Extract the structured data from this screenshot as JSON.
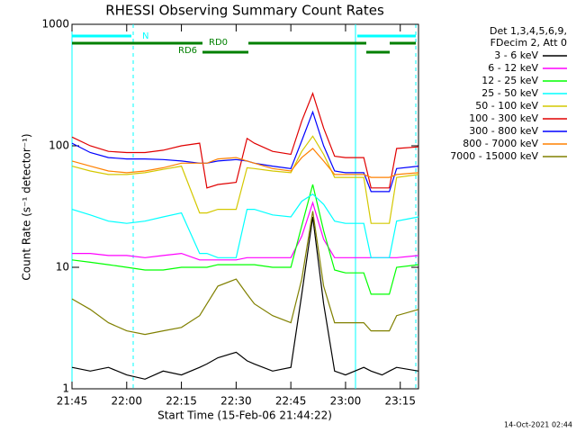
{
  "chart_data": {
    "type": "line",
    "title": "RHESSI Observing Summary Count Rates",
    "x_label": "Start Time (15-Feb-06 21:44:22)",
    "y_label": "Count Rate (s⁻¹ detector⁻¹)",
    "legend_header": [
      "Det 1,3,4,5,6,9,",
      "FDecim 2, Att 0"
    ],
    "annotations": [
      "N",
      "RD0",
      "RD6"
    ],
    "footer": "14-Oct-2021 02:44",
    "y_log": true,
    "xlim": [
      "21:45",
      "23:20"
    ],
    "xticks": [
      "21:45",
      "22:00",
      "22:15",
      "22:30",
      "22:45",
      "23:00",
      "23:15"
    ],
    "ylim": [
      1,
      1000
    ],
    "yticks": [
      1,
      10,
      100,
      1000
    ],
    "x": [
      "21:45",
      "21:50",
      "21:55",
      "22:00",
      "22:05",
      "22:10",
      "22:15",
      "22:20",
      "22:22",
      "22:25",
      "22:30",
      "22:33",
      "22:35",
      "22:40",
      "22:45",
      "22:48",
      "22:51",
      "22:54",
      "22:57",
      "23:00",
      "23:05",
      "23:07",
      "23:10",
      "23:12",
      "23:14",
      "23:20"
    ],
    "series": [
      {
        "name": "3 - 6 keV",
        "color": "#000000",
        "values": [
          1.5,
          1.4,
          1.5,
          1.3,
          1.2,
          1.4,
          1.3,
          1.5,
          1.6,
          1.8,
          2.0,
          1.7,
          1.6,
          1.4,
          1.5,
          6,
          26,
          5,
          1.4,
          1.3,
          1.5,
          1.4,
          1.3,
          1.4,
          1.5,
          1.4
        ]
      },
      {
        "name": "6 - 12 keV",
        "color": "#ff00ff",
        "values": [
          13,
          13,
          12.5,
          12.5,
          12,
          12.5,
          13,
          11.5,
          11.5,
          11.5,
          11.5,
          12,
          12,
          12,
          12,
          18,
          34,
          17,
          12,
          12,
          12,
          12,
          12,
          12,
          12,
          12.5
        ]
      },
      {
        "name": "12 - 25 keV",
        "color": "#00ff00",
        "values": [
          11.5,
          11,
          10.5,
          10,
          9.5,
          9.5,
          10,
          10,
          10,
          10.5,
          10.5,
          10.5,
          10.5,
          10,
          10,
          22,
          48,
          20,
          9.5,
          9,
          9,
          6,
          6,
          6,
          10,
          10.5
        ]
      },
      {
        "name": "25 - 50 keV",
        "color": "#00ffff",
        "values": [
          30,
          27,
          24,
          23,
          24,
          26,
          28,
          13,
          13,
          12,
          12,
          30,
          30,
          27,
          26,
          35,
          40,
          33,
          24,
          23,
          23,
          12,
          12,
          12,
          24,
          26
        ]
      },
      {
        "name": "50 - 100 keV",
        "color": "#d4c800",
        "values": [
          68,
          62,
          58,
          58,
          60,
          64,
          68,
          28,
          28,
          30,
          30,
          66,
          65,
          62,
          60,
          90,
          120,
          85,
          55,
          55,
          55,
          23,
          23,
          23,
          55,
          58
        ]
      },
      {
        "name": "100 - 300 keV",
        "color": "#e00000",
        "values": [
          118,
          100,
          90,
          88,
          88,
          92,
          100,
          105,
          45,
          48,
          50,
          115,
          105,
          90,
          85,
          160,
          270,
          140,
          82,
          80,
          80,
          45,
          45,
          45,
          95,
          98
        ]
      },
      {
        "name": "300 - 800 keV",
        "color": "#0000ff",
        "values": [
          105,
          88,
          80,
          78,
          78,
          77,
          75,
          72,
          72,
          75,
          77,
          75,
          72,
          68,
          65,
          110,
          190,
          100,
          62,
          60,
          60,
          42,
          42,
          42,
          65,
          68
        ]
      },
      {
        "name": "800 - 7000 keV",
        "color": "#ff8000",
        "values": [
          75,
          68,
          62,
          60,
          62,
          66,
          72,
          72,
          72,
          78,
          80,
          75,
          72,
          65,
          62,
          80,
          95,
          75,
          58,
          58,
          58,
          55,
          55,
          55,
          58,
          60
        ]
      },
      {
        "name": "7000 - 15000 keV",
        "color": "#808000",
        "values": [
          5.5,
          4.5,
          3.5,
          3,
          2.8,
          3,
          3.2,
          4,
          5,
          7,
          8,
          6,
          5,
          4,
          3.5,
          8,
          29,
          7,
          3.5,
          3.5,
          3.5,
          3,
          3,
          3,
          4,
          4.5
        ]
      }
    ]
  }
}
